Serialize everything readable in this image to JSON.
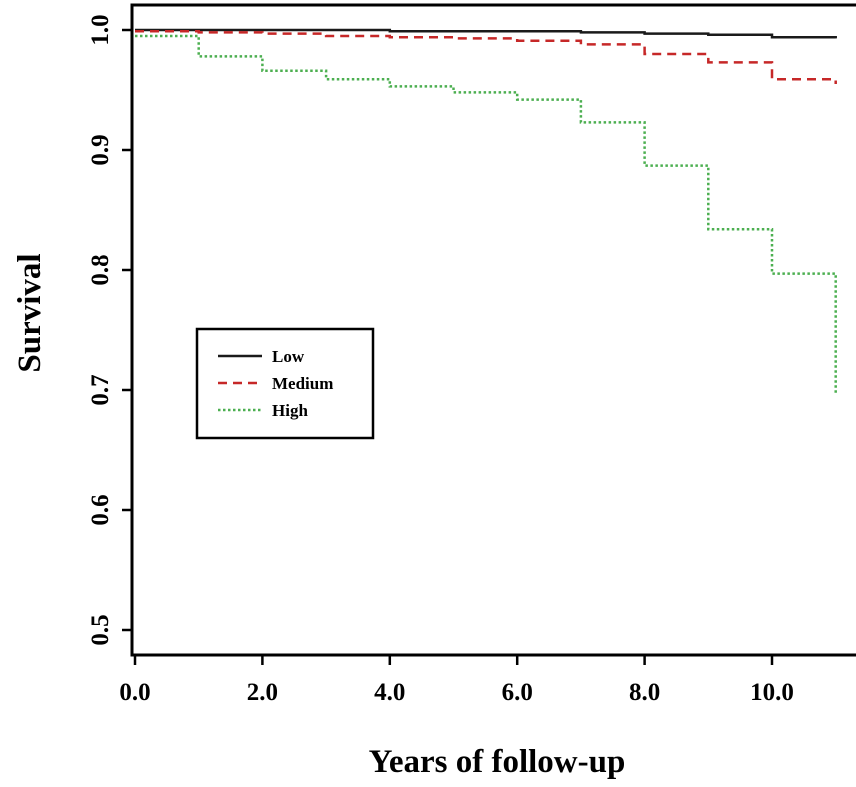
{
  "chart_data": {
    "type": "line",
    "xlabel": "Years of follow-up",
    "ylabel": "Survival",
    "xlim": [
      0,
      11
    ],
    "ylim": [
      0.46,
      1.02
    ],
    "x_ticks": [
      0,
      2,
      4,
      6,
      8,
      10
    ],
    "x_tick_labels": [
      "0.0",
      "2.0",
      "4.0",
      "6.0",
      "8.0",
      "10.0"
    ],
    "y_ticks": [
      0.5,
      0.6,
      0.7,
      0.8,
      0.9,
      1.0
    ],
    "y_tick_labels": [
      "0.5",
      "0.6",
      "0.7",
      "0.8",
      "0.9",
      "1.0"
    ],
    "grid": false,
    "legend_position": "middle-left",
    "series": [
      {
        "name": "Low",
        "color": "#1a1a1a",
        "dash": "solid",
        "x": [
          0,
          2,
          4,
          6,
          7,
          8,
          9,
          10,
          11
        ],
        "y": [
          1.0,
          1.0,
          0.999,
          0.999,
          0.998,
          0.997,
          0.996,
          0.994,
          0.993
        ]
      },
      {
        "name": "Medium",
        "color": "#c62828",
        "dash": "dashed",
        "x": [
          0,
          1,
          2,
          3,
          4,
          5,
          6,
          7,
          8,
          9,
          10,
          11
        ],
        "y": [
          0.999,
          0.998,
          0.997,
          0.995,
          0.994,
          0.993,
          0.991,
          0.988,
          0.98,
          0.973,
          0.959,
          0.955
        ]
      },
      {
        "name": "High",
        "color": "#4caf50",
        "dash": "dotted",
        "x": [
          0,
          1,
          2,
          3,
          4,
          5,
          6,
          7,
          8,
          9,
          10,
          11
        ],
        "y": [
          0.995,
          0.978,
          0.966,
          0.959,
          0.953,
          0.948,
          0.942,
          0.923,
          0.887,
          0.834,
          0.797,
          0.697
        ]
      }
    ]
  }
}
